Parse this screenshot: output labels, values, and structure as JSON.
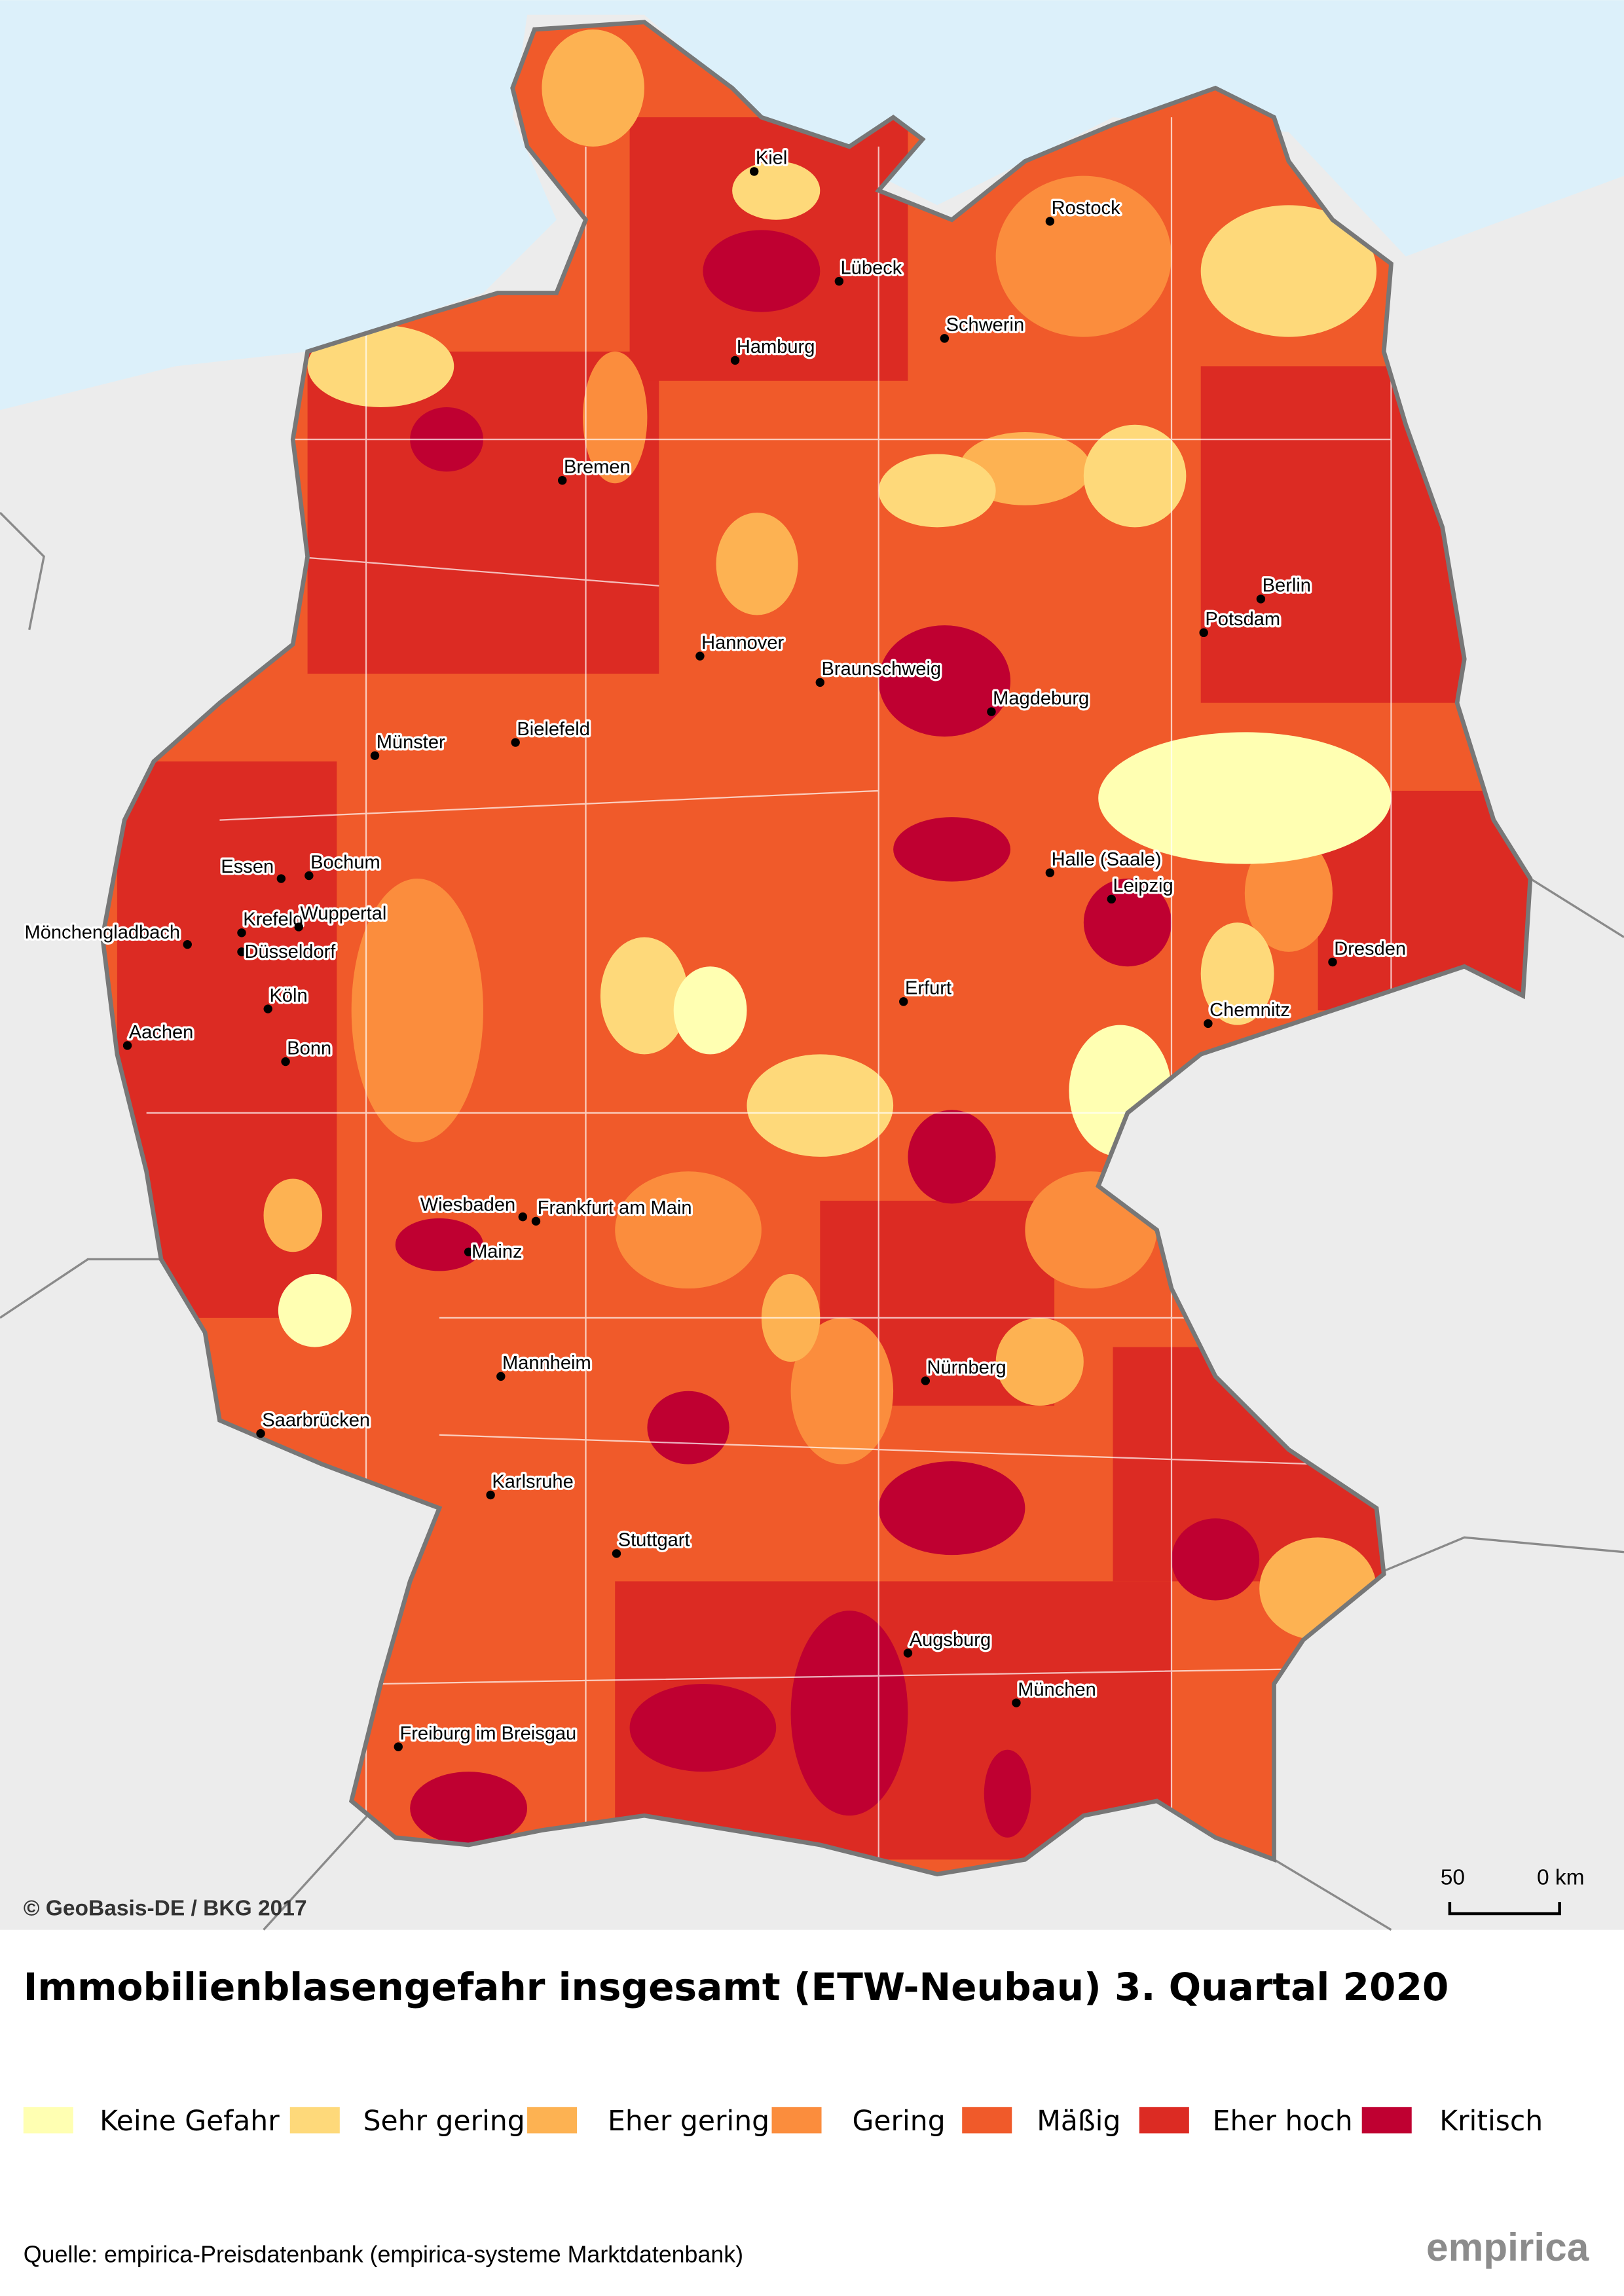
{
  "map": {
    "copyright": "© GeoBasis-DE / BKG 2017",
    "scale": {
      "left": "50",
      "right": "0 km"
    },
    "cities": [
      "Kiel",
      "Rostock",
      "Lübeck",
      "Schwerin",
      "Hamburg",
      "Bremen",
      "Berlin",
      "Potsdam",
      "Hannover",
      "Braunschweig",
      "Magdeburg",
      "Münster",
      "Bielefeld",
      "Halle (Saale)",
      "Leipzig",
      "Dresden",
      "Essen",
      "Bochum",
      "Krefeld",
      "Wuppertal",
      "Mönchengladbach",
      "Düsseldorf",
      "Erfurt",
      "Chemnitz",
      "Köln",
      "Aachen",
      "Bonn",
      "Wiesbaden",
      "Frankfurt am Main",
      "Mainz",
      "Nürnberg",
      "Mannheim",
      "Saarbrücken",
      "Karlsruhe",
      "Stuttgart",
      "Augsburg",
      "München",
      "Freiburg im Breisgau"
    ]
  },
  "title": "Immobilienblasengefahr insgesamt (ETW-Neubau) 3. Quartal 2020",
  "legend": [
    {
      "label": "Keine Gefahr",
      "color": "#ffffb2"
    },
    {
      "label": "Sehr gering",
      "color": "#fed97a"
    },
    {
      "label": "Eher gering",
      "color": "#fdb252"
    },
    {
      "label": "Gering",
      "color": "#fb8d3d"
    },
    {
      "label": "Mäßig",
      "color": "#f05a2a"
    },
    {
      "label": "Eher hoch",
      "color": "#dc2b23"
    },
    {
      "label": "Kritisch",
      "color": "#bf0031"
    }
  ],
  "source": "Quelle: empirica-Preisdatenbank (empirica-systeme Marktdatenbank)",
  "logo": "empirica"
}
